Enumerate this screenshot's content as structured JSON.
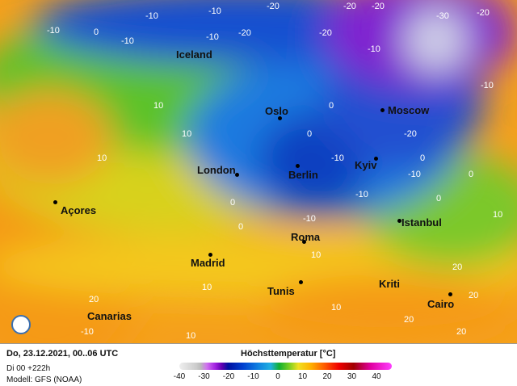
{
  "cities": [
    {
      "name": "Iceland"
    },
    {
      "name": "Oslo"
    },
    {
      "name": "Moscow"
    },
    {
      "name": "London"
    },
    {
      "name": "Berlin"
    },
    {
      "name": "Kyiv"
    },
    {
      "name": "Açores"
    },
    {
      "name": "Istanbul"
    },
    {
      "name": "Roma"
    },
    {
      "name": "Madrid"
    },
    {
      "name": "Kriti"
    },
    {
      "name": "Tunis"
    },
    {
      "name": "Cairo"
    },
    {
      "name": "Canarias"
    }
  ],
  "isolines": [
    "-10",
    "0",
    "-10",
    "-10",
    "-20",
    "-20",
    "-20",
    "-30",
    "-20",
    "-10",
    "-10",
    "-20",
    "-20",
    "-10",
    "10",
    "10",
    "0",
    "10",
    "0",
    "-10",
    "-10",
    "-10",
    "0",
    "0",
    "-10",
    "-20",
    "-10",
    "0",
    "10",
    "10",
    "-10",
    "0",
    "10",
    "0",
    "20",
    "10",
    "20",
    "20",
    "20",
    "10",
    "20"
  ],
  "footer": {
    "date": "Do, 23.12.2021, 00..06 UTC",
    "run": "Di 00 +222h",
    "model": "Modell: GFS (NOAA)"
  },
  "legend": {
    "title": "Höchsttemperatur [°C]",
    "ticks": [
      "-40",
      "-30",
      "-20",
      "-10",
      "0",
      "10",
      "20",
      "30",
      "40"
    ]
  },
  "colors": {
    "warm": "#f7a21a",
    "mild": "#7fd11c",
    "cold": "#1e3fd0",
    "very_cold": "#8a18d8"
  }
}
